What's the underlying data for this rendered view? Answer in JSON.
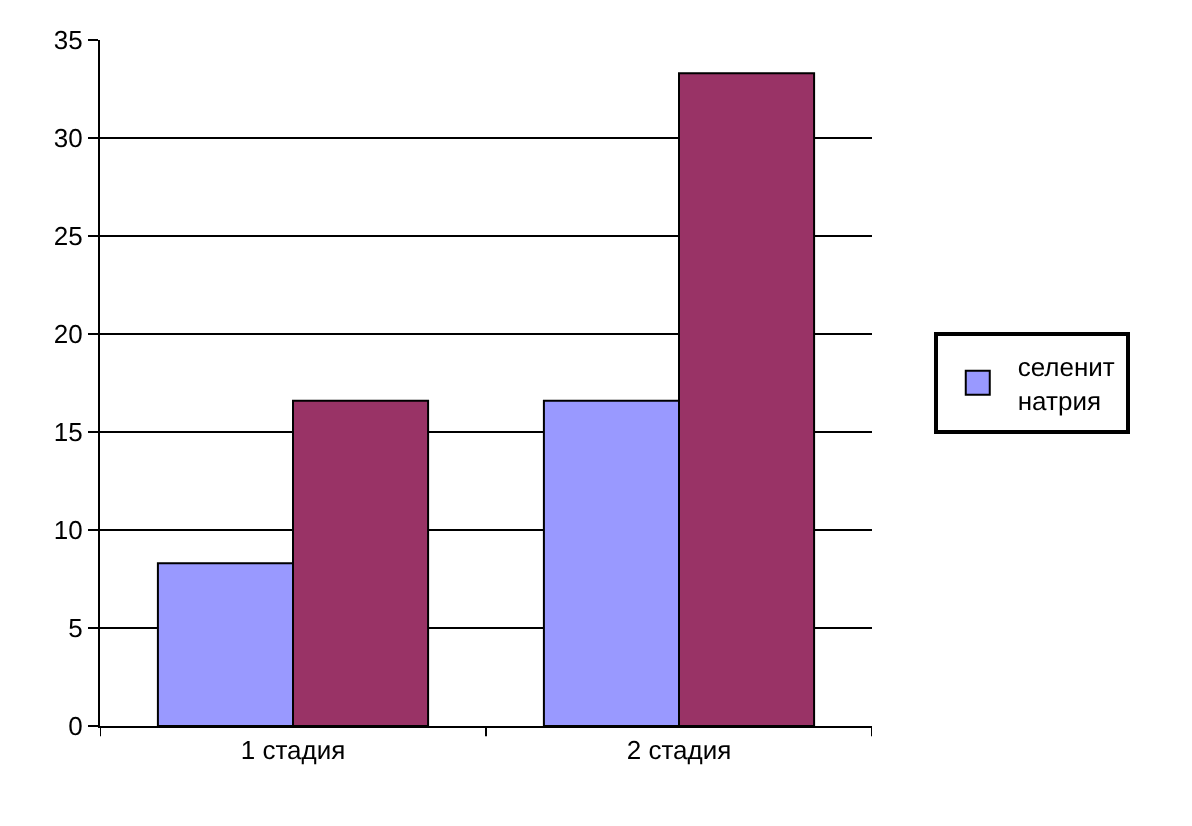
{
  "chart_data": {
    "type": "bar",
    "categories": [
      "1 стадия",
      "2 стадия"
    ],
    "series": [
      {
        "name": "селенит натрия",
        "color": "#9999ff",
        "values": [
          8.3,
          16.6
        ]
      },
      {
        "color": "#993366",
        "values": [
          16.6,
          33.3
        ]
      }
    ],
    "ylim": [
      0,
      35
    ],
    "yticks": [
      0,
      5,
      10,
      15,
      20,
      25,
      30,
      35
    ],
    "grid": "y",
    "legend": "right"
  }
}
